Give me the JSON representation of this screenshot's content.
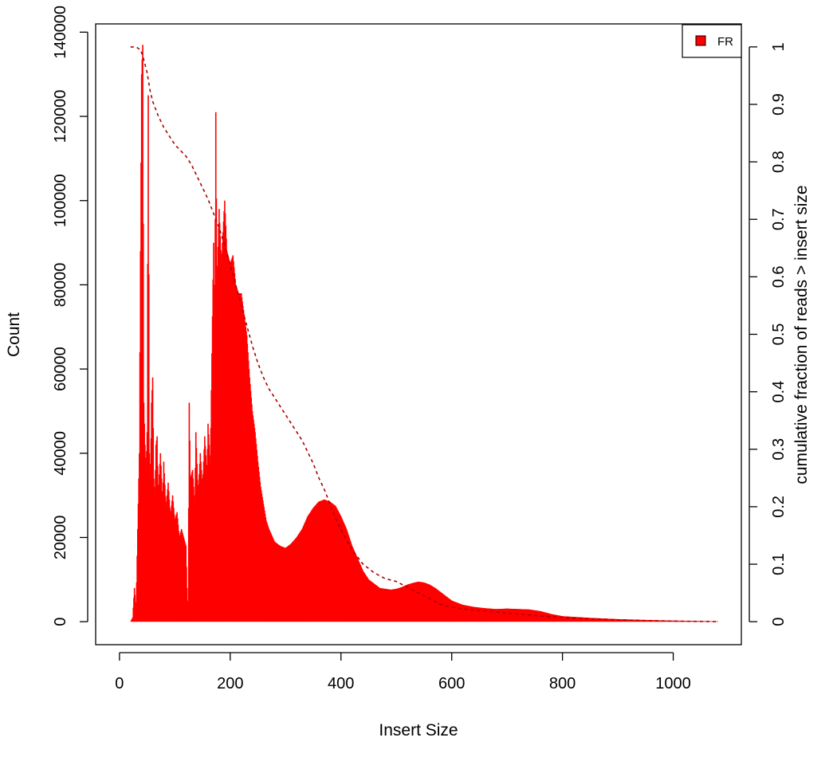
{
  "chart_data": {
    "type": "bar",
    "xlabel": "Insert Size",
    "ylabel": "Count",
    "y2label": "cumulative fraction of reads > insert size",
    "xlim": [
      -43,
      1123
    ],
    "ylim": [
      -5460,
      141960
    ],
    "y2lim": [
      -0.04,
      1.04
    ],
    "xticks": [
      0,
      200,
      400,
      600,
      800,
      1000
    ],
    "yticks": [
      0,
      20000,
      40000,
      60000,
      80000,
      100000,
      120000,
      140000
    ],
    "y2ticks": [
      0,
      0.1,
      0.2,
      0.3,
      0.4,
      0.5,
      0.6,
      0.7,
      0.8,
      0.9,
      1
    ],
    "legend": {
      "position": "top-right",
      "entries": [
        {
          "label": "FR",
          "color": "#ff0000"
        }
      ]
    },
    "histogram_color": "#ff0000",
    "cumulative_color": "#aa0000",
    "histogram_envelope": [
      [
        20,
        0
      ],
      [
        24,
        1000
      ],
      [
        27,
        8000
      ],
      [
        30,
        3000
      ],
      [
        33,
        22000
      ],
      [
        36,
        40000
      ],
      [
        38,
        88000
      ],
      [
        40,
        130000
      ],
      [
        42,
        137000
      ],
      [
        44,
        52000
      ],
      [
        46,
        42000
      ],
      [
        48,
        36000
      ],
      [
        50,
        45000
      ],
      [
        52,
        125000
      ],
      [
        54,
        40000
      ],
      [
        56,
        35000
      ],
      [
        58,
        52000
      ],
      [
        60,
        58000
      ],
      [
        62,
        34000
      ],
      [
        64,
        30000
      ],
      [
        66,
        42000
      ],
      [
        68,
        44000
      ],
      [
        70,
        30000
      ],
      [
        74,
        40000
      ],
      [
        78,
        28000
      ],
      [
        80,
        38000
      ],
      [
        84,
        27000
      ],
      [
        88,
        33000
      ],
      [
        92,
        25000
      ],
      [
        96,
        30000
      ],
      [
        100,
        24000
      ],
      [
        104,
        26000
      ],
      [
        108,
        20000
      ],
      [
        112,
        22000
      ],
      [
        116,
        20000
      ],
      [
        120,
        18000
      ],
      [
        122,
        8000
      ],
      [
        124,
        2000
      ],
      [
        126,
        52000
      ],
      [
        128,
        34000
      ],
      [
        132,
        36000
      ],
      [
        136,
        28000
      ],
      [
        138,
        45000
      ],
      [
        142,
        30000
      ],
      [
        146,
        40000
      ],
      [
        150,
        32000
      ],
      [
        154,
        44000
      ],
      [
        158,
        35000
      ],
      [
        160,
        47000
      ],
      [
        164,
        37000
      ],
      [
        166,
        55000
      ],
      [
        170,
        90000
      ],
      [
        172,
        70000
      ],
      [
        174,
        121000
      ],
      [
        176,
        80000
      ],
      [
        180,
        98000
      ],
      [
        184,
        85000
      ],
      [
        188,
        95000
      ],
      [
        190,
        100000
      ],
      [
        194,
        88000
      ],
      [
        200,
        85000
      ],
      [
        205,
        87000
      ],
      [
        210,
        80000
      ],
      [
        215,
        78000
      ],
      [
        220,
        78000
      ],
      [
        225,
        73000
      ],
      [
        230,
        68000
      ],
      [
        235,
        58000
      ],
      [
        240,
        50000
      ],
      [
        245,
        45000
      ],
      [
        250,
        38000
      ],
      [
        255,
        32000
      ],
      [
        260,
        28000
      ],
      [
        265,
        24000
      ],
      [
        270,
        22000
      ],
      [
        280,
        19000
      ],
      [
        290,
        18000
      ],
      [
        300,
        17500
      ],
      [
        310,
        18500
      ],
      [
        320,
        20000
      ],
      [
        330,
        22000
      ],
      [
        340,
        25000
      ],
      [
        350,
        27000
      ],
      [
        360,
        28500
      ],
      [
        370,
        29000
      ],
      [
        380,
        28500
      ],
      [
        390,
        27500
      ],
      [
        400,
        25000
      ],
      [
        410,
        22000
      ],
      [
        420,
        18000
      ],
      [
        430,
        15000
      ],
      [
        440,
        12000
      ],
      [
        450,
        10000
      ],
      [
        460,
        9000
      ],
      [
        470,
        8000
      ],
      [
        480,
        7800
      ],
      [
        490,
        7600
      ],
      [
        500,
        7800
      ],
      [
        510,
        8200
      ],
      [
        520,
        8800
      ],
      [
        530,
        9200
      ],
      [
        540,
        9500
      ],
      [
        550,
        9300
      ],
      [
        560,
        8800
      ],
      [
        570,
        8000
      ],
      [
        580,
        7000
      ],
      [
        590,
        6000
      ],
      [
        600,
        5000
      ],
      [
        620,
        4000
      ],
      [
        640,
        3500
      ],
      [
        660,
        3200
      ],
      [
        680,
        3000
      ],
      [
        700,
        3100
      ],
      [
        720,
        3000
      ],
      [
        740,
        2900
      ],
      [
        760,
        2500
      ],
      [
        780,
        1800
      ],
      [
        800,
        1300
      ],
      [
        850,
        900
      ],
      [
        900,
        600
      ],
      [
        950,
        400
      ],
      [
        1000,
        250
      ],
      [
        1050,
        150
      ],
      [
        1080,
        100
      ]
    ],
    "cumulative": [
      [
        20,
        1.0
      ],
      [
        30,
        1.0
      ],
      [
        38,
        0.995
      ],
      [
        42,
        0.985
      ],
      [
        46,
        0.97
      ],
      [
        50,
        0.955
      ],
      [
        55,
        0.925
      ],
      [
        60,
        0.905
      ],
      [
        70,
        0.88
      ],
      [
        80,
        0.86
      ],
      [
        90,
        0.845
      ],
      [
        100,
        0.83
      ],
      [
        110,
        0.82
      ],
      [
        120,
        0.81
      ],
      [
        130,
        0.795
      ],
      [
        140,
        0.775
      ],
      [
        150,
        0.755
      ],
      [
        160,
        0.735
      ],
      [
        170,
        0.71
      ],
      [
        180,
        0.685
      ],
      [
        190,
        0.655
      ],
      [
        200,
        0.62
      ],
      [
        210,
        0.585
      ],
      [
        220,
        0.55
      ],
      [
        230,
        0.515
      ],
      [
        240,
        0.48
      ],
      [
        250,
        0.45
      ],
      [
        260,
        0.425
      ],
      [
        270,
        0.405
      ],
      [
        280,
        0.39
      ],
      [
        290,
        0.375
      ],
      [
        300,
        0.36
      ],
      [
        310,
        0.345
      ],
      [
        320,
        0.33
      ],
      [
        330,
        0.315
      ],
      [
        340,
        0.295
      ],
      [
        350,
        0.275
      ],
      [
        360,
        0.25
      ],
      [
        370,
        0.23
      ],
      [
        380,
        0.205
      ],
      [
        390,
        0.18
      ],
      [
        400,
        0.16
      ],
      [
        420,
        0.125
      ],
      [
        440,
        0.1
      ],
      [
        460,
        0.085
      ],
      [
        480,
        0.075
      ],
      [
        500,
        0.07
      ],
      [
        520,
        0.06
      ],
      [
        540,
        0.05
      ],
      [
        560,
        0.04
      ],
      [
        580,
        0.03
      ],
      [
        600,
        0.025
      ],
      [
        640,
        0.02
      ],
      [
        700,
        0.015
      ],
      [
        760,
        0.01
      ],
      [
        800,
        0.007
      ],
      [
        900,
        0.003
      ],
      [
        1000,
        0.001
      ],
      [
        1080,
        0.0
      ]
    ]
  }
}
